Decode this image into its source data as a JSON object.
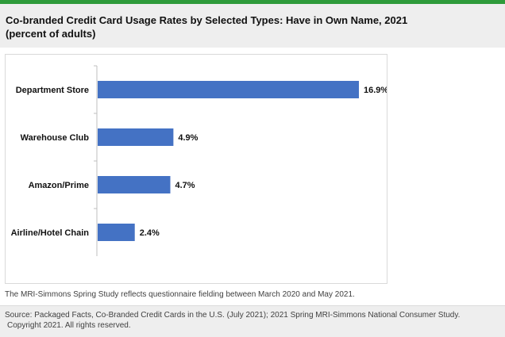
{
  "header": {
    "title_line1": "Co-branded Credit Card Usage Rates by Selected Types: Have in Own Name, 2021",
    "title_line2": "(percent of adults)"
  },
  "colors": {
    "accent_rule": "#2e9b3a",
    "bar": "#4472c4"
  },
  "chart_data": {
    "type": "bar",
    "orientation": "horizontal",
    "title": "",
    "xlabel": "",
    "ylabel": "",
    "categories": [
      "Department Store",
      "Warehouse Club",
      "Amazon/Prime",
      "Airline/Hotel Chain"
    ],
    "values": [
      16.9,
      4.9,
      4.7,
      2.4
    ],
    "data_labels": [
      "16.9%",
      "4.9%",
      "4.7%",
      "2.4%"
    ],
    "xlim": [
      0,
      16.9
    ],
    "grid": false,
    "legend": "none"
  },
  "note": "The MRI-Simmons Spring Study reflects questionnaire fielding between March 2020 and May 2021.",
  "footer": {
    "source_line1": "Source: Packaged Facts, Co-Branded Credit Cards in the U.S. (July 2021); 2021 Spring MRI-Simmons National Consumer Study.",
    "source_line2": "Copyright 2021. All rights reserved."
  }
}
